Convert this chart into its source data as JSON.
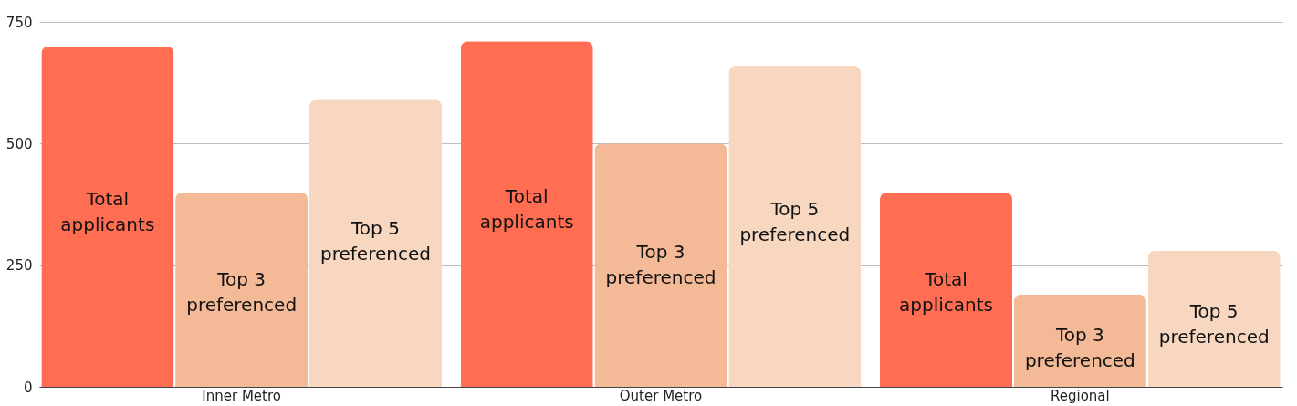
{
  "chart_data": {
    "type": "bar",
    "categories": [
      "Inner Metro",
      "Outer Metro",
      "Regional"
    ],
    "series": [
      {
        "name": "Total applicants",
        "color": "#ff6d52",
        "values": [
          700,
          710,
          400
        ]
      },
      {
        "name": "Top 3 preferenced",
        "color": "#f4b997",
        "values": [
          400,
          500,
          190
        ]
      },
      {
        "name": "Top 5 preferenced",
        "color": "#f8d7c1",
        "values": [
          590,
          660,
          280
        ]
      }
    ],
    "ylim": [
      0,
      750
    ],
    "yticks": [
      0,
      250,
      500,
      750
    ],
    "grid": "y",
    "legend": false
  }
}
